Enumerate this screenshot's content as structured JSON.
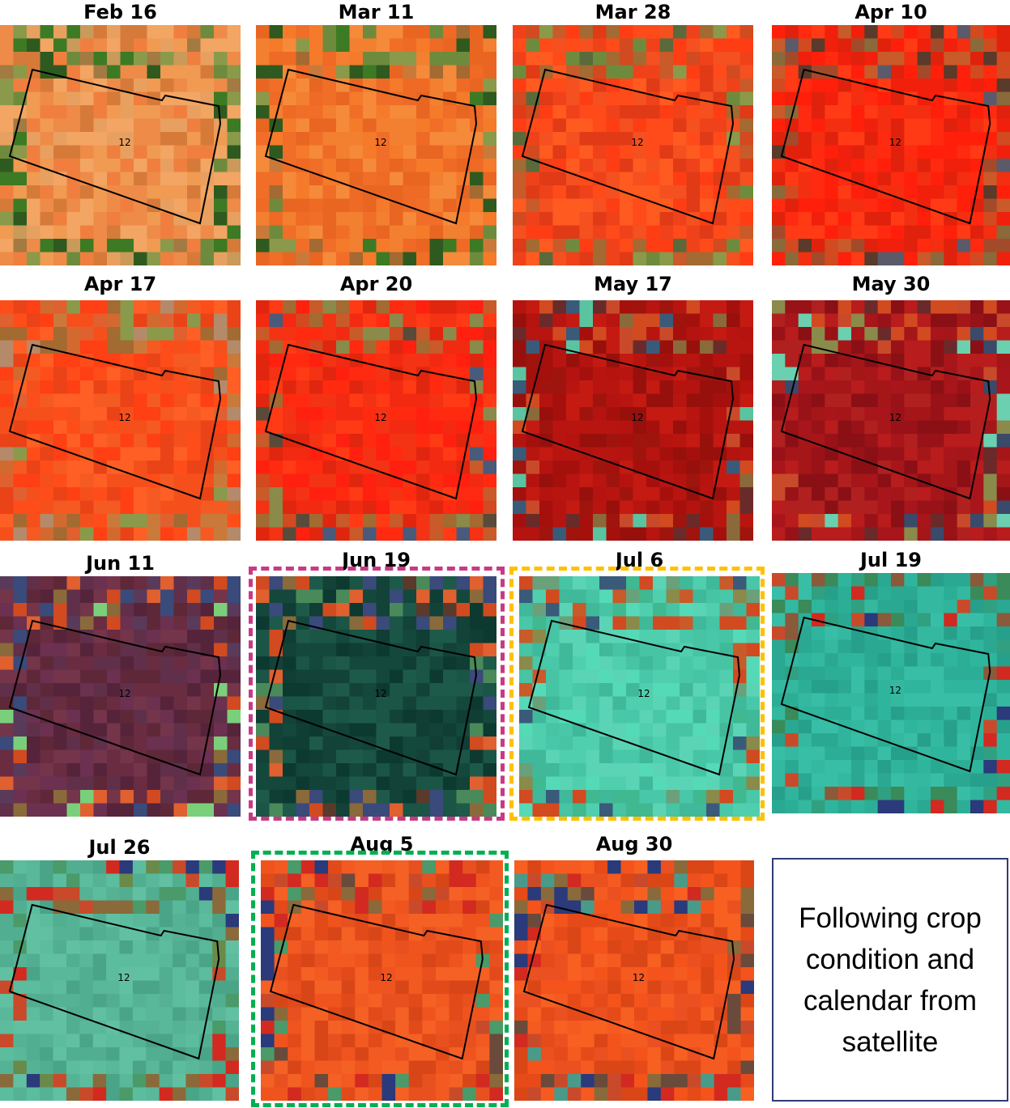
{
  "panels": [
    {
      "date": "Feb 16",
      "field_label": "12",
      "palette": [
        "#f07f3f",
        "#f09a52",
        "#ee8b48",
        "#e8a060",
        "#d67a3a",
        "#f3a563"
      ],
      "edge": [
        "#3d7a24",
        "#6e8b3d",
        "#a37a42",
        "#c99a5a",
        "#2f5a1f",
        "#8a9a4a"
      ]
    },
    {
      "date": "Mar 11",
      "field_label": "12",
      "palette": [
        "#f57a2a",
        "#f06e28",
        "#f58a3a",
        "#ee6a25",
        "#f37f30",
        "#e96522"
      ],
      "edge": [
        "#3d7a24",
        "#6e8b3d",
        "#a36a32",
        "#c97a3a",
        "#2f5a1f",
        "#8a9a4a"
      ]
    },
    {
      "date": "Mar 28",
      "field_label": "12",
      "palette": [
        "#ff4a1a",
        "#f0421a",
        "#ff5a1f",
        "#e03a17",
        "#ff3d14",
        "#f45020"
      ],
      "edge": [
        "#6e8b3d",
        "#a36a32",
        "#c95a2a",
        "#8a9a4a",
        "#d24a20",
        "#5a6a3a"
      ]
    },
    {
      "date": "Apr 10",
      "field_label": "12",
      "palette": [
        "#ff2a0f",
        "#f0200c",
        "#ff3a15",
        "#e0220d",
        "#ff1f0a",
        "#f42e10"
      ],
      "edge": [
        "#5a5a6a",
        "#a34a2a",
        "#c95a2a",
        "#8a6a3a",
        "#d24a20",
        "#5a3a2a"
      ]
    },
    {
      "date": "Apr 17",
      "field_label": "12",
      "palette": [
        "#ff4d1a",
        "#f5501c",
        "#ff5f25",
        "#e94317",
        "#ff3f14",
        "#f45a22"
      ],
      "edge": [
        "#a36a32",
        "#c97a3a",
        "#8a9a4a",
        "#d26a30",
        "#b58a6a",
        "#e06030"
      ]
    },
    {
      "date": "Apr 20",
      "field_label": "12",
      "palette": [
        "#ff2a0f",
        "#f22a12",
        "#ff3a15",
        "#e0260e",
        "#ff2010",
        "#f43214"
      ],
      "edge": [
        "#4a5a7a",
        "#a36a32",
        "#c95a2a",
        "#8a8a4a",
        "#d24a20",
        "#5a4a3a"
      ]
    },
    {
      "date": "May 17",
      "field_label": "12",
      "palette": [
        "#b5130f",
        "#a5100d",
        "#c41a12",
        "#98100c",
        "#b81510",
        "#a0140e"
      ],
      "edge": [
        "#3a5a7a",
        "#c94a2a",
        "#8a6a3a",
        "#5ac4a0",
        "#d24a20",
        "#6a2a2a"
      ]
    },
    {
      "date": "May 30",
      "field_label": "12",
      "palette": [
        "#a8151a",
        "#981218",
        "#b81c1c",
        "#8a1015",
        "#a51619",
        "#b0201f"
      ],
      "edge": [
        "#3a4a6a",
        "#c94a2a",
        "#8a8a4a",
        "#6ad0b0",
        "#d24a20",
        "#6a2a2a"
      ]
    },
    {
      "date": "Jun 11",
      "field_label": "12",
      "palette": [
        "#6a2c40",
        "#5e2838",
        "#74344a",
        "#56243a",
        "#6c3050",
        "#60304a"
      ],
      "edge": [
        "#3a4a7a",
        "#d24a20",
        "#8a6a3a",
        "#7ad07a",
        "#e06030",
        "#5a3a5a"
      ]
    },
    {
      "date": "Jun 19",
      "field_label": "12",
      "palette": [
        "#14483c",
        "#103e34",
        "#1a5546",
        "#0c3a30",
        "#1e5a4a",
        "#124238"
      ],
      "edge": [
        "#3a4a7a",
        "#d24a20",
        "#8a6a3a",
        "#4a8a5a",
        "#e06030",
        "#5a3a2a"
      ]
    },
    {
      "date": "Jul 6",
      "field_label": "12",
      "palette": [
        "#4fcfae",
        "#46c4a4",
        "#5ad4b4",
        "#40b89a",
        "#55dab8",
        "#48c8a8"
      ],
      "edge": [
        "#3a5a7a",
        "#c95a2a",
        "#8a8a4a",
        "#40b890",
        "#d24a20",
        "#6aa07a"
      ]
    },
    {
      "date": "Jul 19",
      "field_label": "12",
      "palette": [
        "#2fb59e",
        "#2aa892",
        "#38bea6",
        "#26a08a",
        "#34b8a0",
        "#2cae96"
      ],
      "edge": [
        "#2a3a7a",
        "#c94a2a",
        "#8a5a3a",
        "#30a080",
        "#d22a20",
        "#3a8a5a"
      ]
    },
    {
      "date": "Jul 26",
      "field_label": "12",
      "palette": [
        "#5ab89a",
        "#52ae90",
        "#62c0a2",
        "#4aa488",
        "#5cbc9e",
        "#56b294"
      ],
      "edge": [
        "#2a3a7a",
        "#c94a2a",
        "#8a6a3a",
        "#4a9a6a",
        "#d22a20",
        "#6a8a4a"
      ]
    },
    {
      "date": "Aug 5",
      "field_label": "12",
      "palette": [
        "#f0541e",
        "#e24a1a",
        "#f56024",
        "#d84618",
        "#f25a22",
        "#e85020"
      ],
      "edge": [
        "#2a3a7a",
        "#c94a2a",
        "#8a6a3a",
        "#4a9a6a",
        "#d22a20",
        "#6a4a3a"
      ]
    },
    {
      "date": "Aug 30",
      "field_label": "12",
      "palette": [
        "#f4541c",
        "#e54a18",
        "#f86022",
        "#da4616",
        "#f55a20",
        "#ea5020"
      ],
      "edge": [
        "#2a3a7a",
        "#c94a2a",
        "#8a6a3a",
        "#4a9a8a",
        "#d22a20",
        "#6a4a3a"
      ]
    }
  ],
  "highlights": [
    {
      "panel": "Jun 19",
      "color": "#c73a85"
    },
    {
      "panel": "Jul 6",
      "color": "#ffc000"
    },
    {
      "panel": "Aug 5",
      "color": "#00b050"
    }
  ],
  "caption": {
    "text": "Following crop condition and calendar from satellite"
  }
}
